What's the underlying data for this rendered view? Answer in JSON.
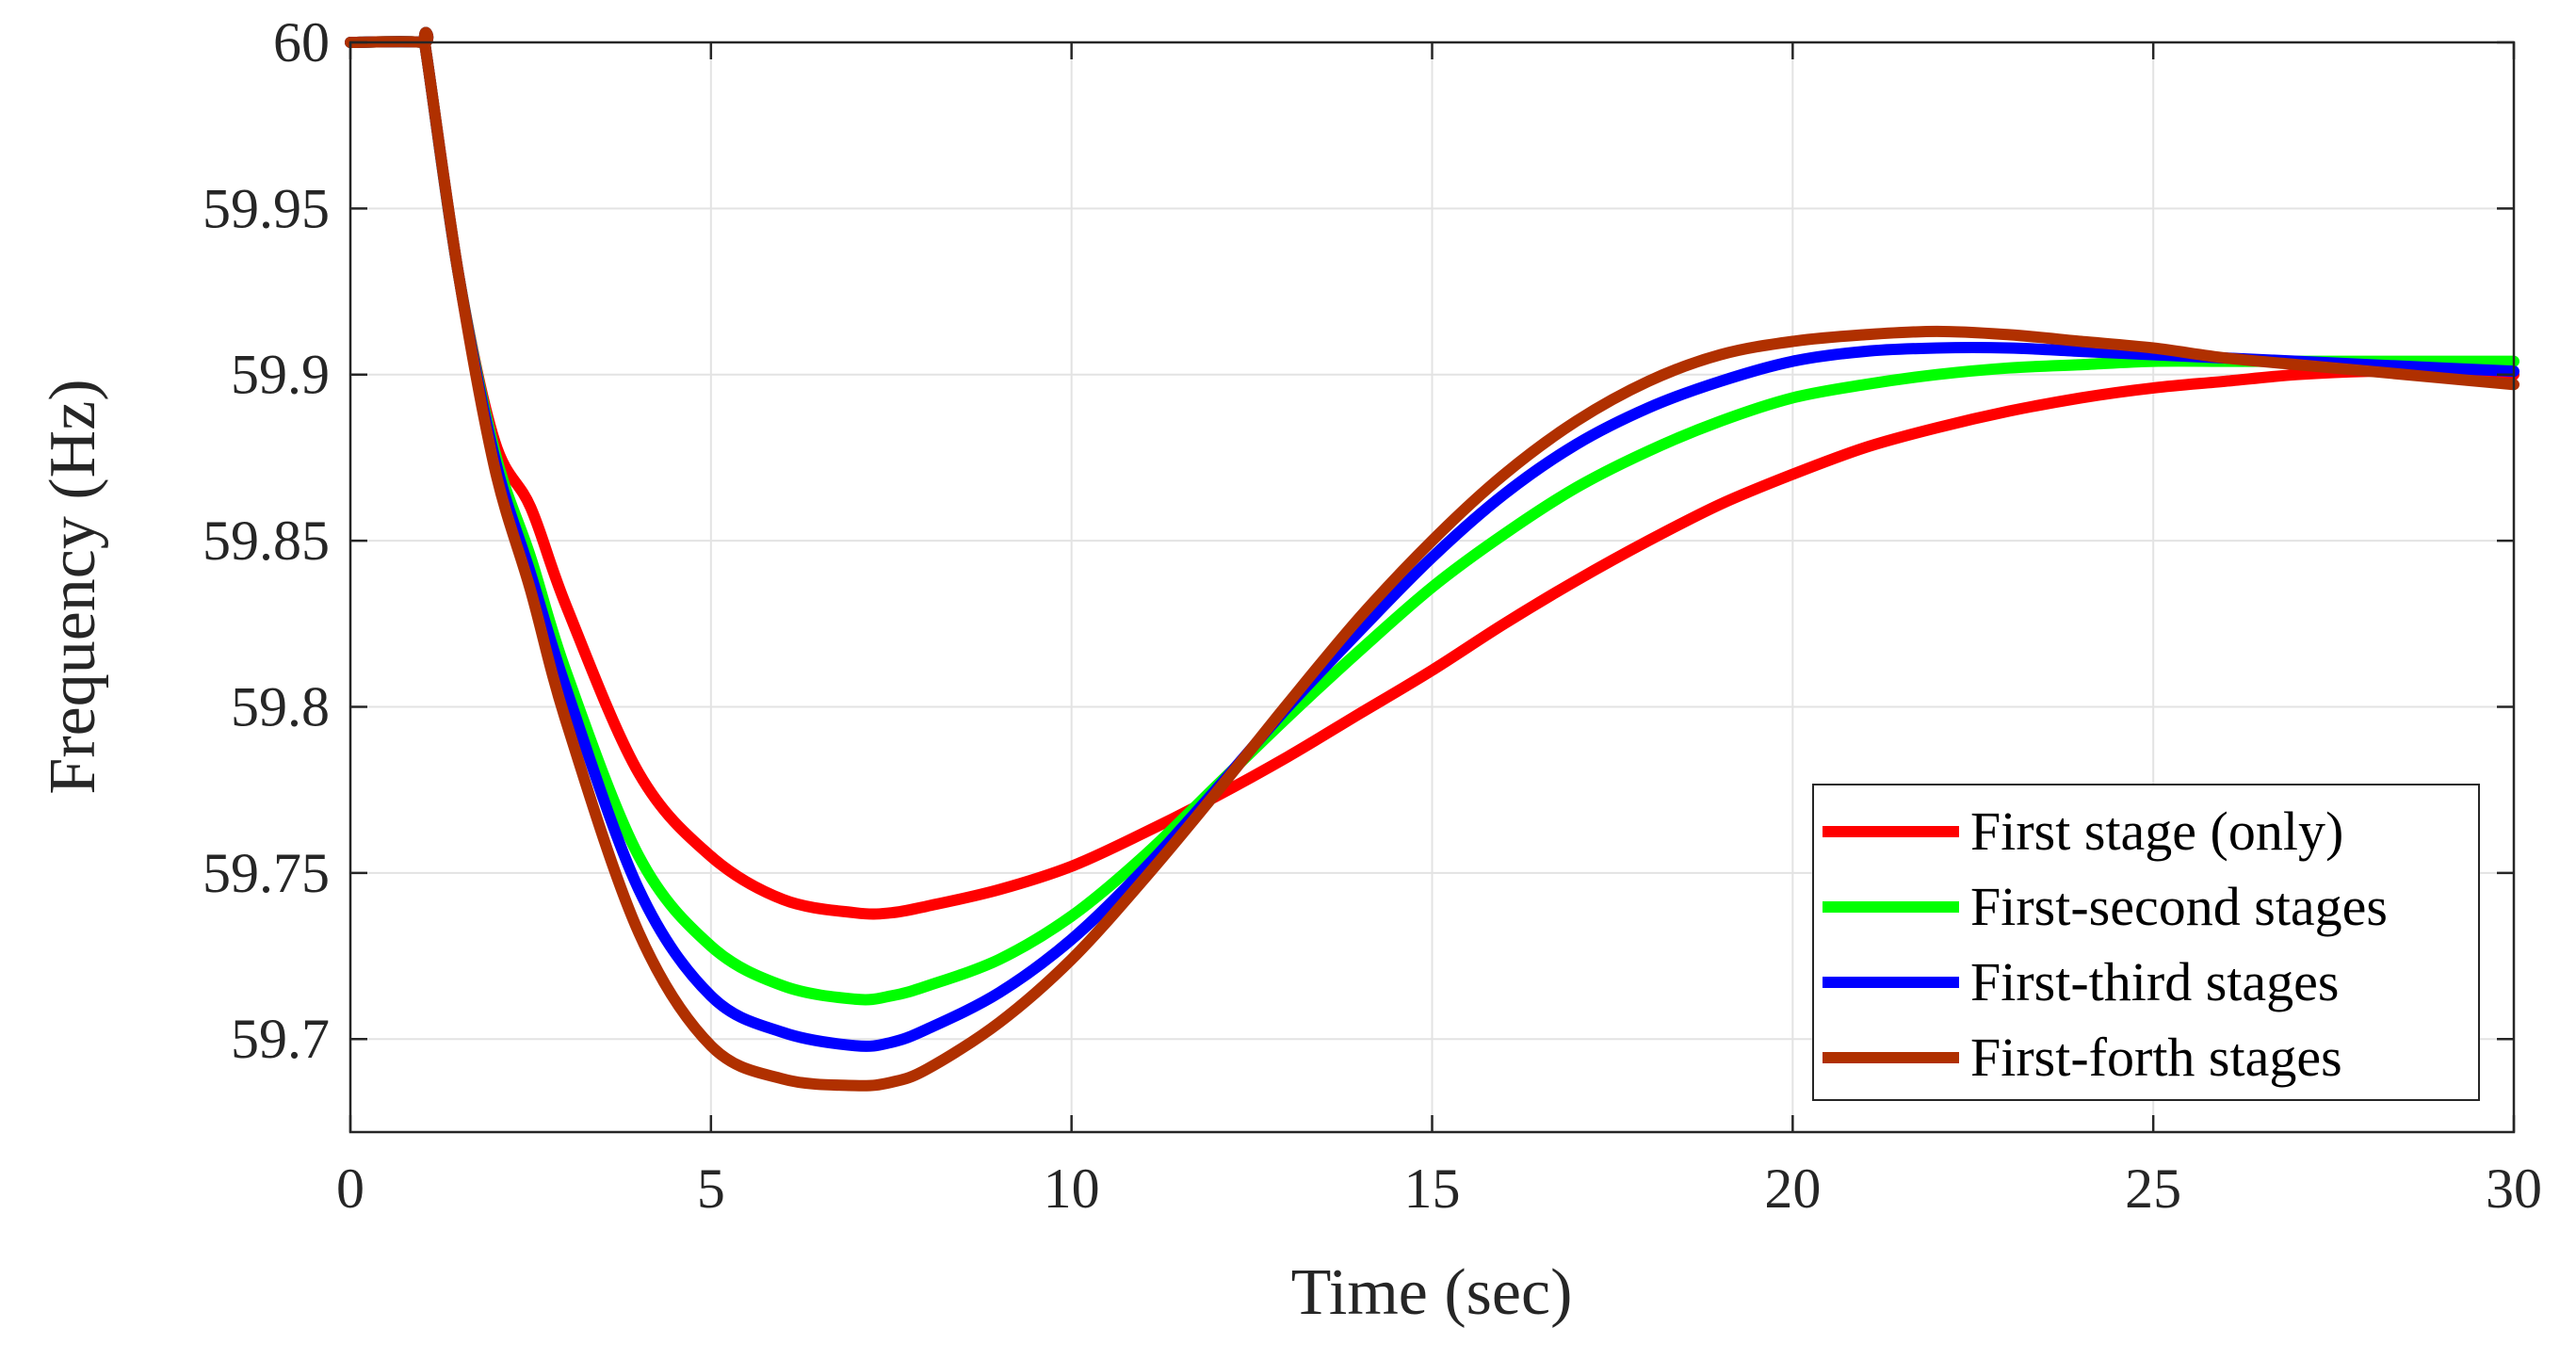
{
  "chart_data": {
    "type": "line",
    "title": "",
    "xlabel": "Time (sec)",
    "ylabel": "Frequency (Hz)",
    "xlim": [
      0,
      30
    ],
    "ylim": [
      59.672,
      60.0
    ],
    "xticks": [
      0,
      5,
      10,
      15,
      20,
      25,
      30
    ],
    "xtick_labels": [
      "0",
      "5",
      "10",
      "15",
      "20",
      "25",
      "30"
    ],
    "yticks": [
      59.7,
      59.75,
      59.8,
      59.85,
      59.9,
      59.95,
      60.0
    ],
    "ytick_labels": [
      "59.7",
      "59.75",
      "59.8",
      "59.85",
      "59.9",
      "59.95",
      "60"
    ],
    "grid": true,
    "legend_position": "bottom-right",
    "series": [
      {
        "name": "First stage (only)",
        "color": "#ff0000",
        "x": [
          0,
          1,
          1.05,
          1.5,
          2,
          2.5,
          3,
          4,
          5,
          6,
          7,
          7.5,
          8,
          9,
          10,
          11,
          12,
          13,
          14,
          15,
          16,
          17,
          18,
          19,
          20,
          21,
          22,
          23,
          24,
          25,
          26,
          27,
          28,
          29,
          30
        ],
        "y": [
          60.0,
          60.0,
          59.997,
          59.93,
          59.88,
          59.86,
          59.83,
          59.78,
          59.755,
          59.742,
          59.738,
          59.738,
          59.74,
          59.745,
          59.752,
          59.762,
          59.773,
          59.785,
          59.798,
          59.811,
          59.825,
          59.838,
          59.85,
          59.861,
          59.87,
          59.878,
          59.884,
          59.889,
          59.893,
          59.896,
          59.898,
          59.9,
          59.901,
          59.901,
          59.9
        ]
      },
      {
        "name": "First-second stages",
        "color": "#00ff00",
        "x": [
          0,
          1,
          1.05,
          1.5,
          2,
          2.5,
          3,
          4,
          5,
          6,
          7,
          7.5,
          8,
          9,
          10,
          11,
          12,
          13,
          14,
          15,
          16,
          17,
          18,
          19,
          20,
          21,
          22,
          23,
          24,
          25,
          26,
          27,
          28,
          29,
          30
        ],
        "y": [
          60.0,
          60.0,
          59.997,
          59.93,
          59.877,
          59.845,
          59.81,
          59.755,
          59.728,
          59.716,
          59.712,
          59.713,
          59.716,
          59.724,
          59.737,
          59.755,
          59.776,
          59.797,
          59.817,
          59.836,
          59.852,
          59.866,
          59.877,
          59.886,
          59.893,
          59.897,
          59.9,
          59.902,
          59.903,
          59.904,
          59.904,
          59.904,
          59.904,
          59.904,
          59.904
        ]
      },
      {
        "name": "First-third stages",
        "color": "#0000ff",
        "x": [
          0,
          1,
          1.05,
          1.5,
          2,
          2.5,
          3,
          4,
          5,
          6,
          7,
          7.5,
          8,
          9,
          10,
          11,
          12,
          13,
          14,
          15,
          16,
          17,
          18,
          19,
          20,
          21,
          22,
          23,
          24,
          25,
          26,
          27,
          28,
          29,
          30
        ],
        "y": [
          60.0,
          60.0,
          59.997,
          59.93,
          59.875,
          59.84,
          59.805,
          59.745,
          59.713,
          59.702,
          59.698,
          59.699,
          59.703,
          59.714,
          59.73,
          59.751,
          59.775,
          59.8,
          59.823,
          59.845,
          59.864,
          59.879,
          59.89,
          59.898,
          59.904,
          59.907,
          59.908,
          59.908,
          59.907,
          59.906,
          59.905,
          59.904,
          59.903,
          59.902,
          59.901
        ]
      },
      {
        "name": "First-forth stages",
        "color": "#b03000",
        "x": [
          0,
          1,
          1.05,
          1.5,
          2,
          2.5,
          3,
          4,
          5,
          6,
          7,
          7.5,
          8,
          9,
          10,
          11,
          12,
          13,
          14,
          15,
          16,
          17,
          18,
          19,
          20,
          21,
          22,
          23,
          24,
          25,
          26,
          27,
          28,
          29,
          30
        ],
        "y": [
          60.0,
          60.0,
          59.997,
          59.93,
          59.872,
          59.835,
          59.795,
          59.732,
          59.698,
          59.688,
          59.686,
          59.687,
          59.691,
          59.705,
          59.724,
          59.748,
          59.774,
          59.801,
          59.827,
          59.85,
          59.87,
          59.886,
          59.898,
          59.906,
          59.91,
          59.912,
          59.913,
          59.912,
          59.91,
          59.908,
          59.905,
          59.903,
          59.901,
          59.899,
          59.897
        ]
      }
    ]
  }
}
